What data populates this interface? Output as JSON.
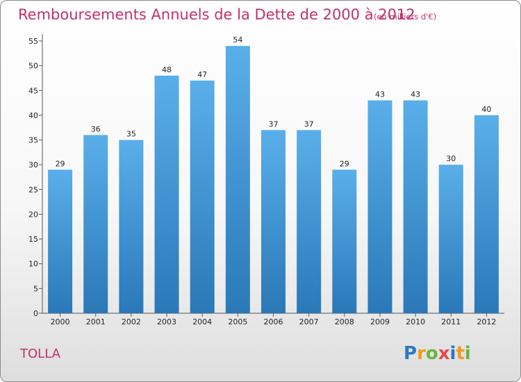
{
  "chart_data": {
    "type": "bar",
    "title": "Remboursements Annuels de la Dette de 2000 à 2012",
    "subtitle": "(en milliers d'€)",
    "categories": [
      "2000",
      "2001",
      "2002",
      "2003",
      "2004",
      "2005",
      "2006",
      "2007",
      "2008",
      "2009",
      "2010",
      "2011",
      "2012"
    ],
    "values": [
      29,
      36,
      35,
      48,
      47,
      54,
      37,
      37,
      29,
      43,
      43,
      30,
      40
    ],
    "yticks": [
      0,
      5,
      10,
      15,
      20,
      25,
      30,
      35,
      40,
      45,
      50,
      55
    ],
    "ylim": [
      0,
      55
    ],
    "grid": false,
    "bar_color_top": "#5aafea",
    "bar_color_bottom": "#2a78b8",
    "xlabel": "",
    "ylabel": ""
  },
  "commune": "TOLLA",
  "logo": {
    "letters": [
      "P",
      "r",
      "o",
      "x",
      "i",
      "t",
      "i"
    ],
    "colors": [
      "#2b78c2",
      "#f29a1f",
      "#6ab43e",
      "#e8484e",
      "#2b78c2",
      "#f29a1f",
      "#6ab43e"
    ]
  }
}
